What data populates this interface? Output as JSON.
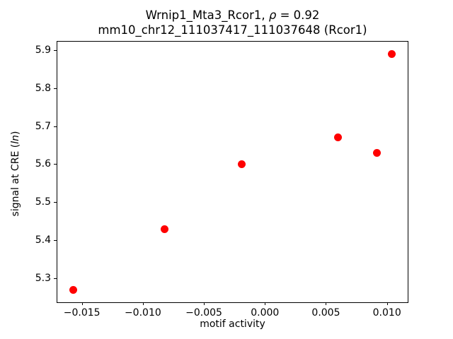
{
  "title": {
    "line1_prefix": "Wrnip1_Mta3_Rcor1, ",
    "line1_rho": "ρ",
    "line1_suffix": " = 0.92",
    "line2": "mm10_chr12_111037417_111037648 (Rcor1)"
  },
  "axes": {
    "xlabel": "motif activity",
    "ylabel_prefix": "signal at CRE (",
    "ylabel_italic": "ln",
    "ylabel_suffix": ")"
  },
  "chart_data": {
    "type": "scatter",
    "title": "Wrnip1_Mta3_Rcor1, ρ = 0.92",
    "subtitle": "mm10_chr12_111037417_111037648 (Rcor1)",
    "xlabel": "motif activity",
    "ylabel": "signal at CRE (ln)",
    "xlim": [
      -0.01701,
      0.0117
    ],
    "ylim": [
      5.237,
      5.922
    ],
    "grid": false,
    "legend_position": "none",
    "xticks": {
      "values": [
        -0.015,
        -0.01,
        -0.005,
        0.0,
        0.005,
        0.01
      ],
      "labels": [
        "−0.015",
        "−0.010",
        "−0.005",
        "0.000",
        "0.005",
        "0.010"
      ]
    },
    "yticks": {
      "values": [
        5.3,
        5.4,
        5.5,
        5.6,
        5.7,
        5.8,
        5.9
      ],
      "labels": [
        "5.3",
        "5.4",
        "5.5",
        "5.6",
        "5.7",
        "5.8",
        "5.9"
      ]
    },
    "points": [
      {
        "x": -0.0157,
        "y": 5.27
      },
      {
        "x": -0.0082,
        "y": 5.43
      },
      {
        "x": -0.0019,
        "y": 5.6
      },
      {
        "x": 0.006,
        "y": 5.67
      },
      {
        "x": 0.0092,
        "y": 5.63
      },
      {
        "x": 0.0104,
        "y": 5.89
      }
    ],
    "colors": {
      "marker": "#ff0000",
      "text": "#000000",
      "spine": "#000000",
      "background": "#ffffff"
    },
    "marker_diameter_px": 11
  }
}
